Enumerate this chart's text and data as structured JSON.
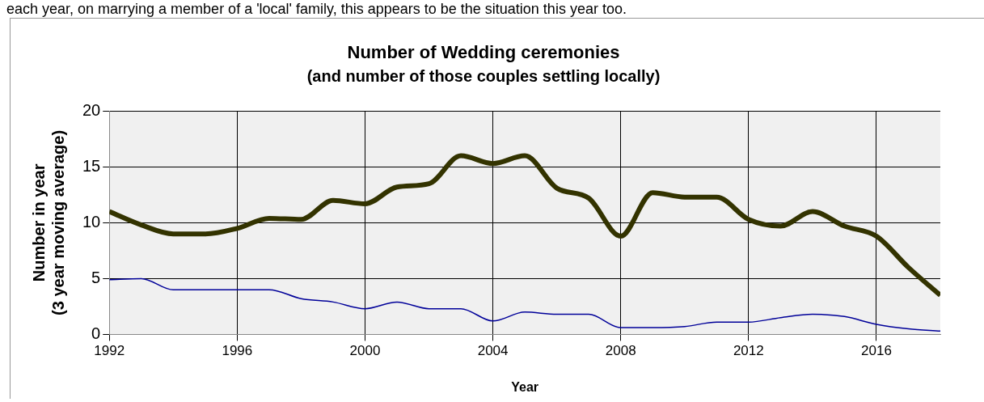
{
  "chart_data": {
    "type": "line",
    "title": "Number of Wedding ceremonies",
    "subtitle": "(and number of those couples settling locally)",
    "xlabel": "Year",
    "ylabel": "Number in year\n(3 year moving average)",
    "annotations": [
      "each year, on marrying a member of a 'local' family, this appears to be the situation this year too."
    ],
    "x": [
      1992,
      1993,
      1994,
      1995,
      1996,
      1997,
      1998,
      1999,
      2000,
      2001,
      2002,
      2003,
      2004,
      2005,
      2006,
      2007,
      2008,
      2009,
      2010,
      2011,
      2012,
      2013,
      2014,
      2015,
      2016,
      2017,
      2018
    ],
    "series": [
      {
        "color": "#333300",
        "values": [
          11,
          9.8,
          9,
          9,
          9.5,
          10.4,
          10.3,
          12,
          11.7,
          13.2,
          13.5,
          16,
          15.3,
          16,
          13.1,
          12.2,
          8.8,
          12.7,
          12.3,
          12.3,
          10.3,
          9.7,
          11,
          9.7,
          8.8,
          6,
          3.5
        ]
      },
      {
        "color": "#000099",
        "values": [
          4.9,
          5,
          4,
          4,
          4,
          4,
          3.2,
          2.9,
          2.3,
          2.9,
          2.3,
          2.3,
          1.2,
          2,
          1.8,
          1.8,
          0.6,
          0.6,
          0.7,
          1.1,
          1.1,
          1.5,
          1.8,
          1.6,
          0.9,
          0.5,
          0.3
        ]
      }
    ],
    "xlim": [
      1992,
      2018
    ],
    "xticks": [
      1992,
      1996,
      2000,
      2004,
      2008,
      2012,
      2016
    ],
    "ylim": [
      0,
      20
    ],
    "yticks": [
      0,
      5,
      10,
      15,
      20
    ],
    "grid": true,
    "legend": false
  }
}
